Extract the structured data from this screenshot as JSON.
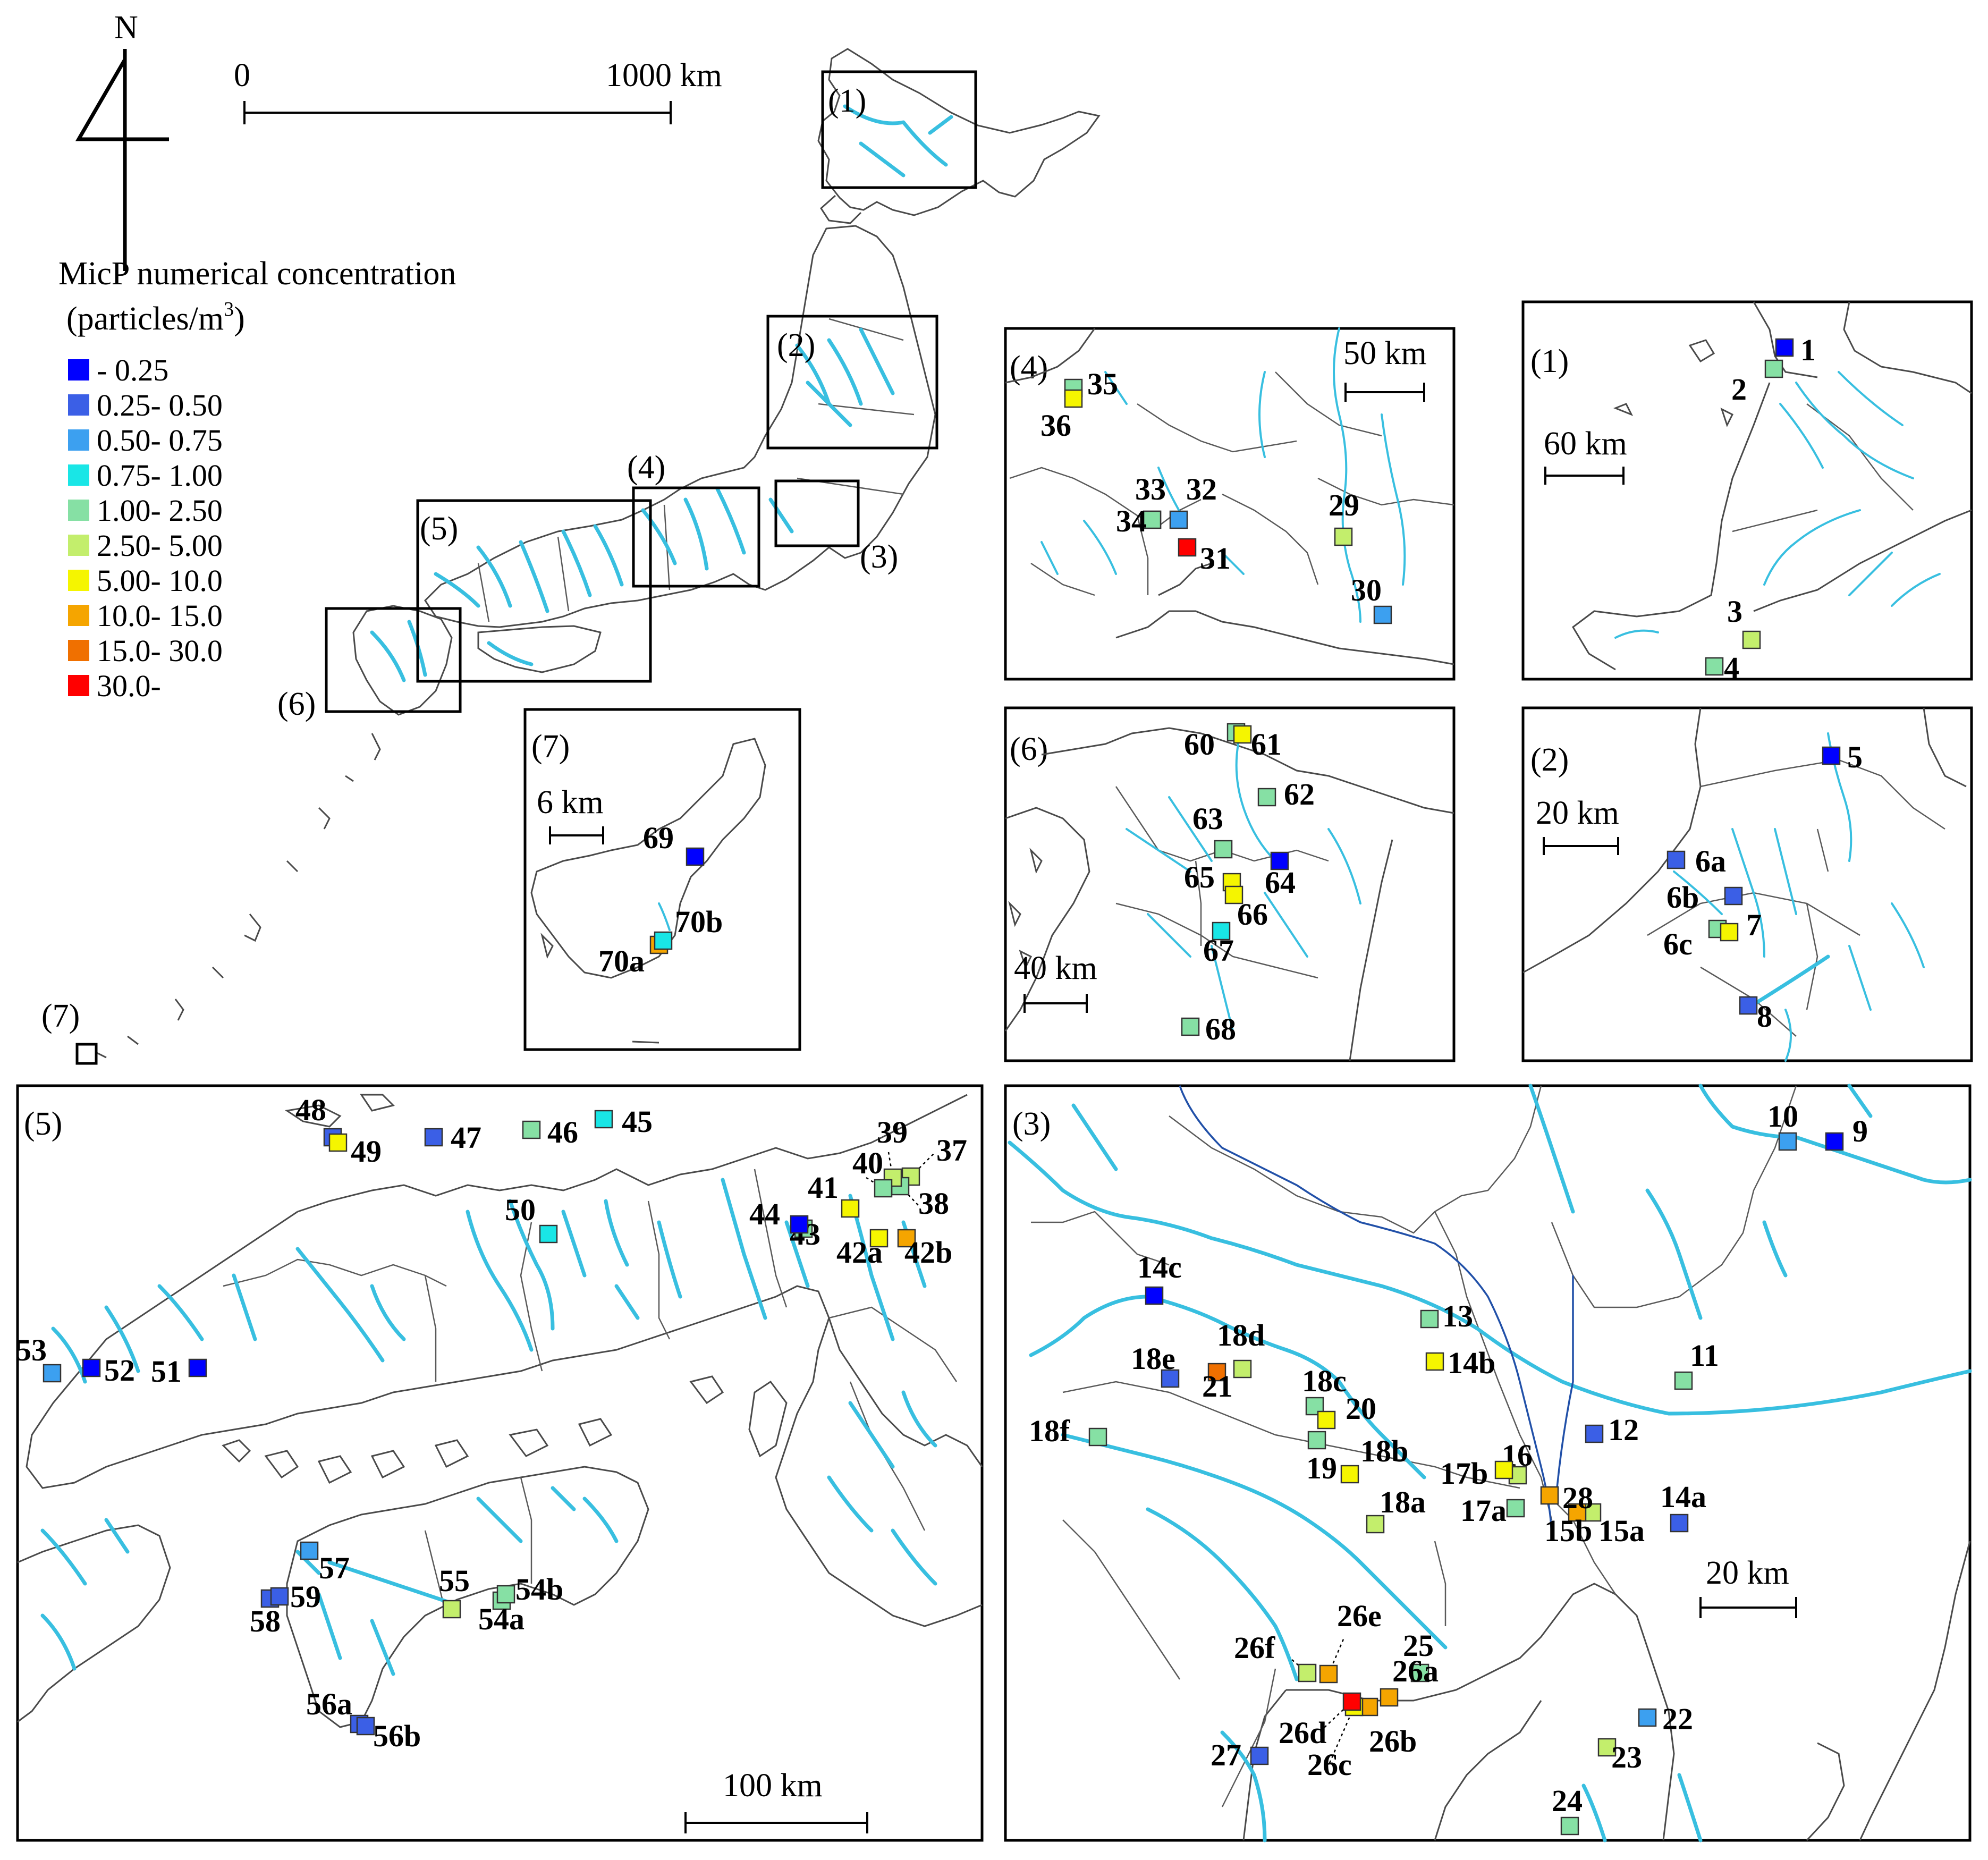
{
  "colors": {
    "c1": "#0000ff",
    "c2": "#3b5fe6",
    "c3": "#3ca0f0",
    "c4": "#19e6e6",
    "c5": "#86e0a4",
    "c6": "#c3ee6c",
    "c7": "#f5f500",
    "c8": "#f5a500",
    "c9": "#f07000",
    "c10": "#ff0000",
    "river": "#38bfe0"
  },
  "north": {
    "label": "N"
  },
  "main_scale": {
    "start": "0",
    "end": "1000 km"
  },
  "legend": {
    "title": "MicP numerical concentration",
    "unit": "(particles/m",
    "unit_sup": "3",
    "unit_close": ")",
    "classes": [
      {
        "label": "- 0.25",
        "color": "#0000ff"
      },
      {
        "label": "0.25- 0.50",
        "color": "#3b5fe6"
      },
      {
        "label": "0.50- 0.75",
        "color": "#3ca0f0"
      },
      {
        "label": "0.75- 1.00",
        "color": "#19e6e6"
      },
      {
        "label": "1.00- 2.50",
        "color": "#86e0a4"
      },
      {
        "label": "2.50- 5.00",
        "color": "#c3ee6c"
      },
      {
        "label": "5.00- 10.0",
        "color": "#f5f500"
      },
      {
        "label": "10.0- 15.0",
        "color": "#f5a500"
      },
      {
        "label": "15.0- 30.0",
        "color": "#f07000"
      },
      {
        "label": "30.0-",
        "color": "#ff0000"
      }
    ]
  },
  "overview_boxes": [
    "(1)",
    "(2)",
    "(3)",
    "(4)",
    "(5)",
    "(6)",
    "(7)"
  ],
  "panels": {
    "p1": {
      "title": "(1)",
      "scale": "60 km"
    },
    "p2": {
      "title": "(2)",
      "scale": "20 km"
    },
    "p3": {
      "title": "(3)",
      "scale": "20 km"
    },
    "p4": {
      "title": "(4)",
      "scale": "50 km"
    },
    "p5": {
      "title": "(5)",
      "scale": "100 km"
    },
    "p6": {
      "title": "(6)",
      "scale": "40 km"
    },
    "p7": {
      "title": "(7)",
      "scale": "6 km"
    }
  },
  "sites": {
    "p1": [
      "1",
      "2",
      "3",
      "4"
    ],
    "p2": [
      "5",
      "6a",
      "6b",
      "6c",
      "7",
      "8"
    ],
    "p3": [
      "9",
      "10",
      "11",
      "12",
      "13",
      "14a",
      "14b",
      "14c",
      "15a",
      "15b",
      "16",
      "17a",
      "17b",
      "18a",
      "18b",
      "18c",
      "18d",
      "18e",
      "18f",
      "19",
      "20",
      "21",
      "22",
      "23",
      "24",
      "25",
      "26a",
      "26b",
      "26c",
      "26d",
      "26e",
      "26f",
      "27",
      "28"
    ],
    "p4": [
      "29",
      "30",
      "31",
      "32",
      "33",
      "34",
      "35",
      "36"
    ],
    "p5": [
      "37",
      "38",
      "39",
      "40",
      "41",
      "42a",
      "42b",
      "43",
      "44",
      "45",
      "46",
      "47",
      "48",
      "49",
      "50",
      "51",
      "52",
      "53",
      "54a",
      "54b",
      "55",
      "56a",
      "56b",
      "57",
      "58",
      "59"
    ],
    "p6": [
      "60",
      "61",
      "62",
      "63",
      "64",
      "65",
      "66",
      "67",
      "68"
    ],
    "p7": [
      "69",
      "70a",
      "70b"
    ]
  }
}
